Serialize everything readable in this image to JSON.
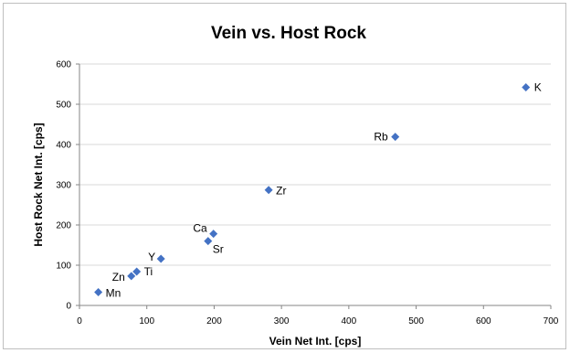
{
  "chart_data": {
    "type": "scatter",
    "title": "Vein vs. Host Rock",
    "xlabel": "Vein Net Int. [cps]",
    "ylabel": "Host Rock Net Int. [cps]",
    "xlim": [
      0,
      700
    ],
    "ylim": [
      0,
      600
    ],
    "xticks": [
      0,
      100,
      200,
      300,
      400,
      500,
      600,
      700
    ],
    "yticks": [
      0,
      100,
      200,
      300,
      400,
      500,
      600
    ],
    "grid": "horizontal",
    "legend": "none",
    "marker": "diamond",
    "colors": {
      "marker": "#4472c4"
    },
    "points": [
      {
        "label": "Mn",
        "x": 28,
        "y": 33
      },
      {
        "label": "Zn",
        "x": 77,
        "y": 73
      },
      {
        "label": "Ti",
        "x": 85,
        "y": 84
      },
      {
        "label": "Y",
        "x": 121,
        "y": 116
      },
      {
        "label": "Sr",
        "x": 191,
        "y": 160
      },
      {
        "label": "Ca",
        "x": 199,
        "y": 178
      },
      {
        "label": "Zr",
        "x": 281,
        "y": 287
      },
      {
        "label": "Rb",
        "x": 469,
        "y": 419
      },
      {
        "label": "K",
        "x": 663,
        "y": 542
      }
    ]
  }
}
